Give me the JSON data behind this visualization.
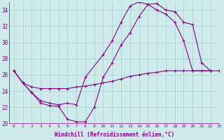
{
  "xlabel": "Windchill (Refroidissement éolien,°C)",
  "xlim": [
    -0.5,
    23
  ],
  "ylim": [
    20,
    35
  ],
  "yticks": [
    20,
    22,
    24,
    26,
    28,
    30,
    32,
    34
  ],
  "xticks": [
    0,
    1,
    2,
    3,
    4,
    5,
    6,
    7,
    8,
    9,
    10,
    11,
    12,
    13,
    14,
    15,
    16,
    17,
    18,
    19,
    20,
    21,
    22,
    23
  ],
  "bg_color": "#ceeaea",
  "line_color": "#880088",
  "grid_color": "#aad4d4",
  "series": [
    {
      "x": [
        0,
        1,
        2,
        3,
        4,
        5,
        6,
        7,
        8,
        9,
        10,
        11,
        12,
        13,
        14,
        15,
        16,
        17,
        18,
        19,
        20,
        21,
        22
      ],
      "y": [
        26.5,
        25.0,
        23.8,
        22.5,
        22.2,
        22.1,
        20.5,
        20.2,
        20.2,
        22.0,
        25.7,
        27.5,
        29.7,
        31.2,
        33.2,
        34.7,
        34.8,
        34.0,
        33.8,
        32.5,
        32.2,
        27.5,
        26.5
      ]
    },
    {
      "x": [
        0,
        1,
        2,
        3,
        4,
        5,
        6,
        7,
        8,
        10,
        11,
        12,
        13,
        14,
        15,
        16,
        17,
        18,
        19,
        20,
        22
      ],
      "y": [
        26.5,
        25.0,
        23.8,
        22.8,
        22.5,
        22.3,
        22.5,
        22.3,
        25.7,
        28.5,
        30.2,
        32.5,
        34.5,
        35.0,
        34.7,
        34.0,
        33.5,
        32.5,
        30.2,
        26.5,
        26.5
      ]
    },
    {
      "x": [
        0,
        1,
        2,
        3,
        4,
        5,
        6,
        7,
        8,
        9,
        10,
        11,
        12,
        13,
        14,
        15,
        16,
        17,
        18,
        19,
        20,
        21,
        22,
        23
      ],
      "y": [
        26.5,
        25.0,
        24.5,
        24.3,
        24.3,
        24.3,
        24.3,
        24.5,
        24.6,
        24.8,
        25.0,
        25.2,
        25.5,
        25.8,
        26.0,
        26.2,
        26.3,
        26.5,
        26.5,
        26.5,
        26.5,
        26.5,
        26.5,
        26.5
      ]
    }
  ]
}
